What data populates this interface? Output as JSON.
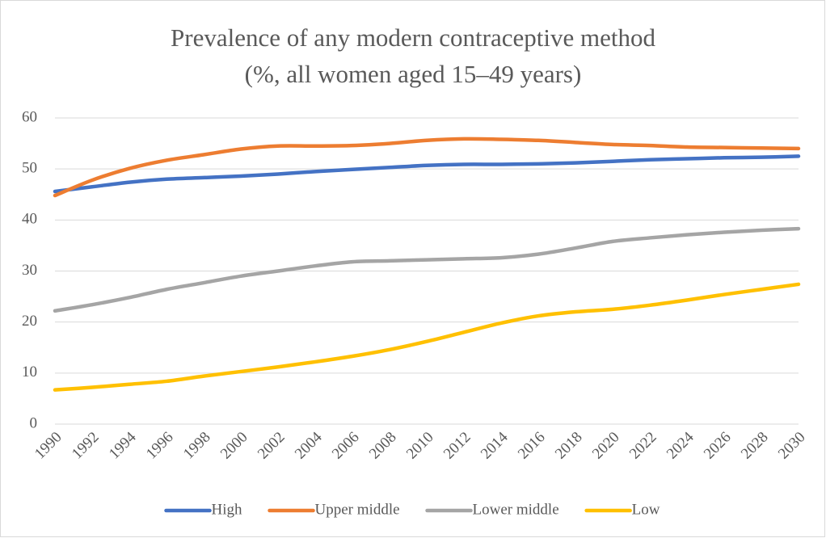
{
  "chart_data": {
    "type": "line",
    "title": [
      "Prevalence of any modern contraceptive method",
      "(%, all women aged 15–49 years)"
    ],
    "x": [
      1990,
      1992,
      1994,
      1996,
      1998,
      2000,
      2002,
      2004,
      2006,
      2008,
      2010,
      2012,
      2014,
      2016,
      2018,
      2020,
      2022,
      2024,
      2026,
      2028,
      2030
    ],
    "series": [
      {
        "name": "High",
        "color": "#4472c4",
        "values": [
          45.6,
          46.5,
          47.4,
          48.0,
          48.3,
          48.6,
          49.0,
          49.5,
          49.9,
          50.3,
          50.7,
          50.9,
          50.9,
          51.0,
          51.2,
          51.5,
          51.8,
          52.0,
          52.2,
          52.3,
          52.5
        ]
      },
      {
        "name": "Upper middle",
        "color": "#ed7d31",
        "values": [
          44.8,
          47.8,
          50.1,
          51.7,
          52.8,
          53.9,
          54.5,
          54.5,
          54.6,
          55.0,
          55.6,
          55.9,
          55.8,
          55.6,
          55.2,
          54.8,
          54.6,
          54.3,
          54.2,
          54.1,
          54.0
        ]
      },
      {
        "name": "Lower middle",
        "color": "#a5a5a5",
        "values": [
          22.2,
          23.4,
          24.8,
          26.4,
          27.7,
          29.0,
          30.0,
          31.0,
          31.8,
          32.0,
          32.2,
          32.4,
          32.6,
          33.3,
          34.5,
          35.8,
          36.5,
          37.1,
          37.6,
          38.0,
          38.3
        ]
      },
      {
        "name": "Low",
        "color": "#ffc000",
        "values": [
          6.7,
          7.2,
          7.8,
          8.4,
          9.4,
          10.3,
          11.2,
          12.2,
          13.3,
          14.6,
          16.2,
          18.0,
          19.8,
          21.2,
          22.0,
          22.5,
          23.3,
          24.3,
          25.4,
          26.4,
          27.4
        ]
      }
    ],
    "xlim": [
      1990,
      2030
    ],
    "xticks": [
      1990,
      1992,
      1994,
      1996,
      1998,
      2000,
      2002,
      2004,
      2006,
      2008,
      2010,
      2012,
      2014,
      2016,
      2018,
      2020,
      2022,
      2024,
      2026,
      2028,
      2030
    ],
    "ylim": [
      0,
      60
    ],
    "yticks": [
      0,
      10,
      20,
      30,
      40,
      50,
      60
    ],
    "grid": true,
    "legend": "bottom"
  }
}
